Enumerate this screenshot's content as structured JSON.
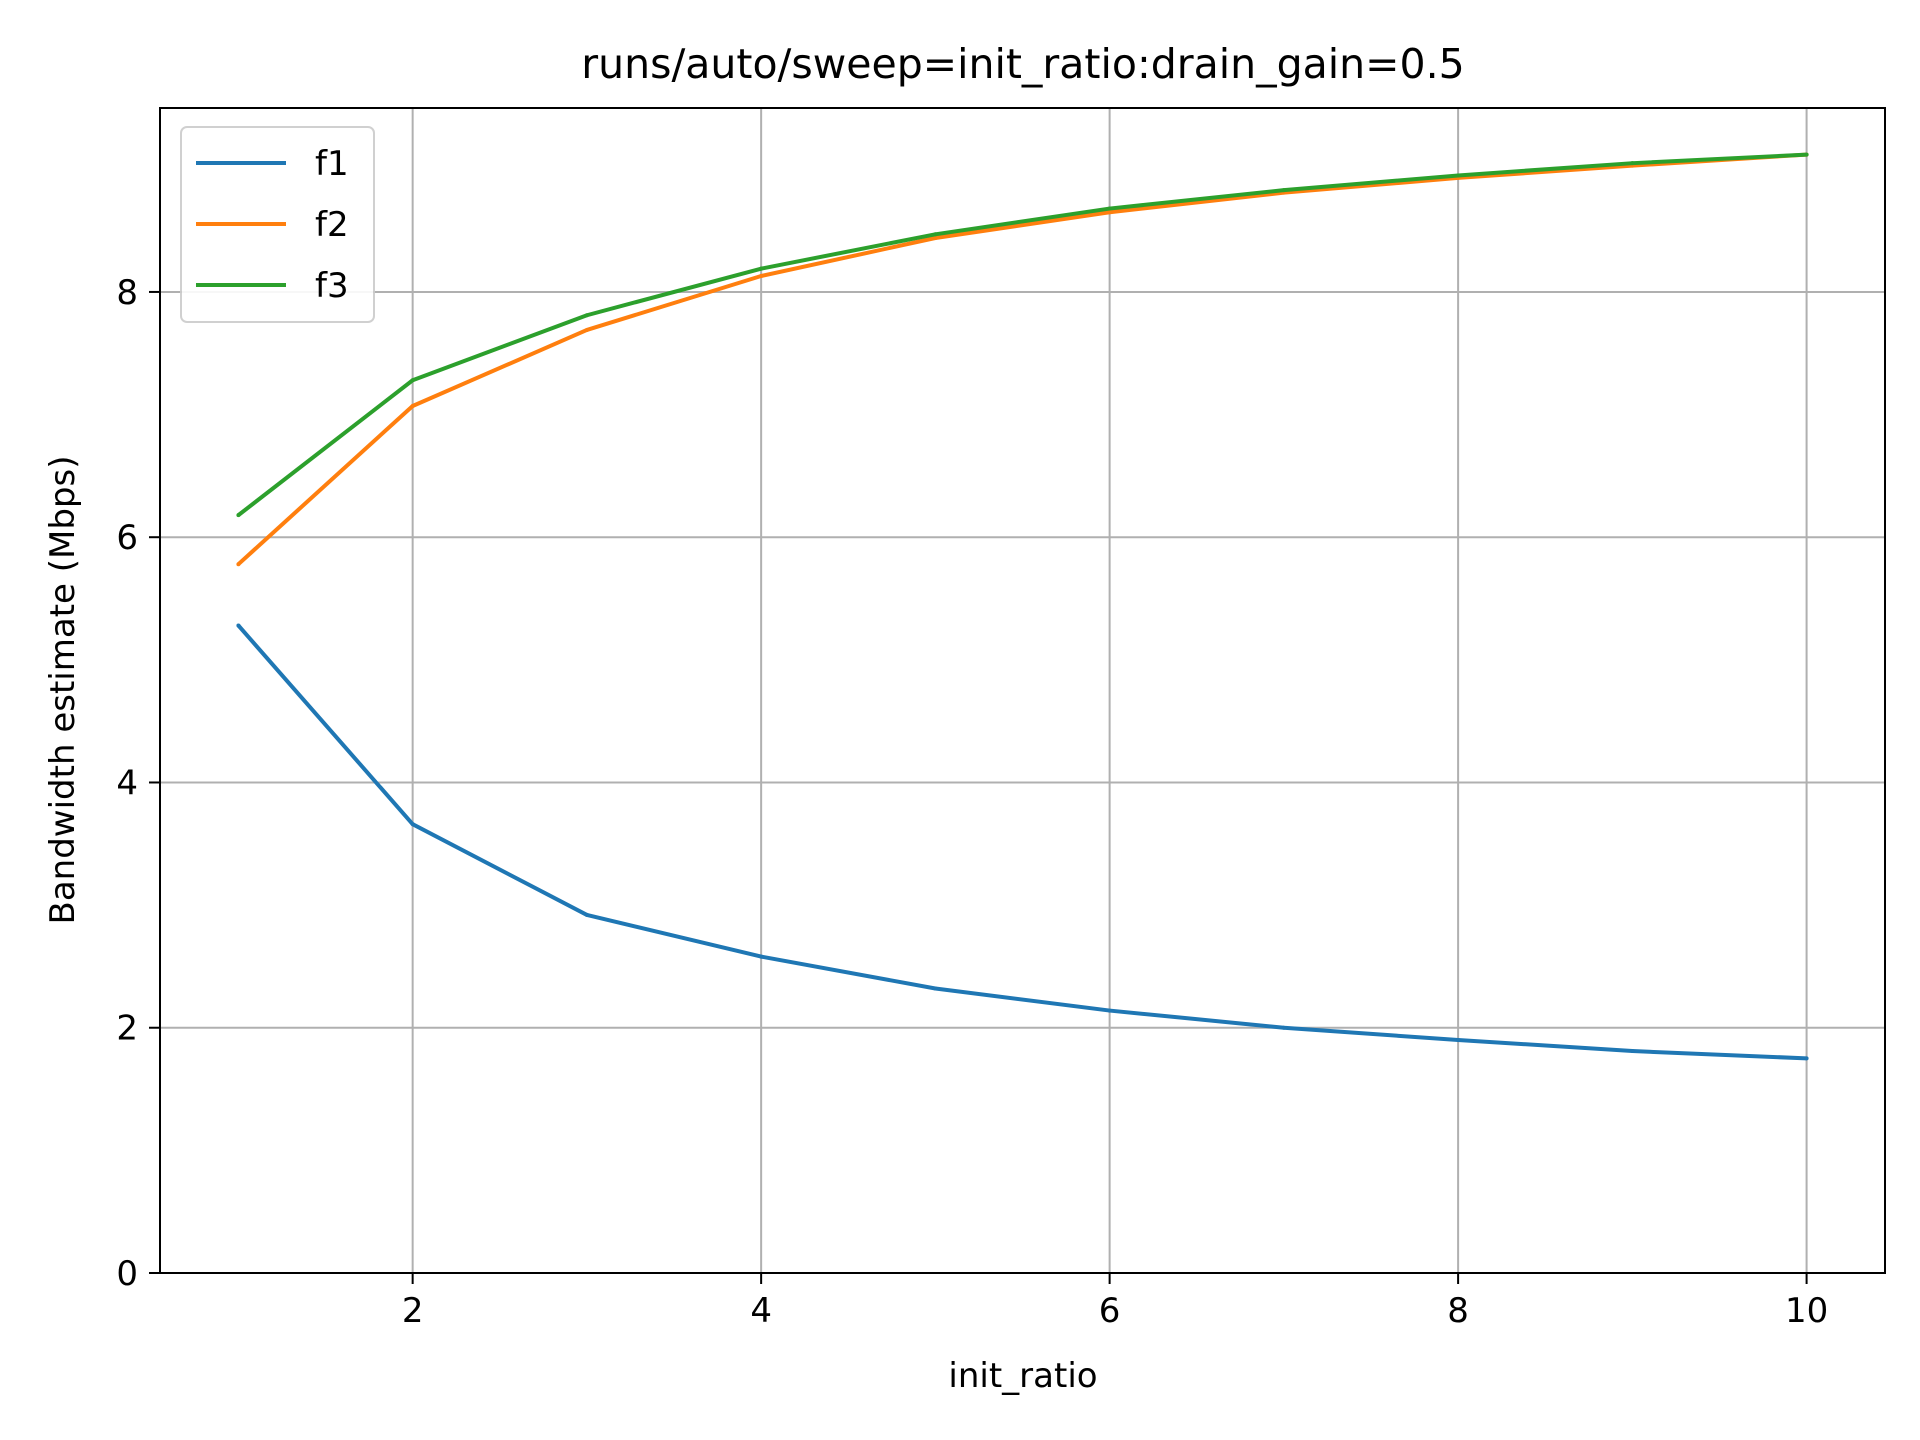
{
  "chart_data": {
    "type": "line",
    "title": "runs/auto/sweep=init_ratio:drain_gain=0.5",
    "xlabel": "init_ratio",
    "ylabel": "Bandwidth estimate (Mbps)",
    "xlim": [
      0.55,
      10.45
    ],
    "ylim": [
      0,
      9.5
    ],
    "xticks": [
      2,
      4,
      6,
      8,
      10
    ],
    "yticks": [
      0,
      2,
      4,
      6,
      8
    ],
    "grid": true,
    "legend_position": "upper-left",
    "x": [
      1,
      2,
      3,
      4,
      5,
      6,
      7,
      8,
      9,
      10
    ],
    "series": [
      {
        "name": "f1",
        "color": "#1f77b4",
        "values": [
          5.28,
          3.66,
          2.92,
          2.58,
          2.32,
          2.14,
          2.0,
          1.9,
          1.81,
          1.75
        ]
      },
      {
        "name": "f2",
        "color": "#ff7f0e",
        "values": [
          5.78,
          7.07,
          7.69,
          8.13,
          8.44,
          8.65,
          8.81,
          8.93,
          9.03,
          9.12
        ]
      },
      {
        "name": "f3",
        "color": "#2ca02c",
        "values": [
          6.18,
          7.28,
          7.81,
          8.19,
          8.47,
          8.68,
          8.83,
          8.95,
          9.05,
          9.12
        ]
      }
    ]
  }
}
